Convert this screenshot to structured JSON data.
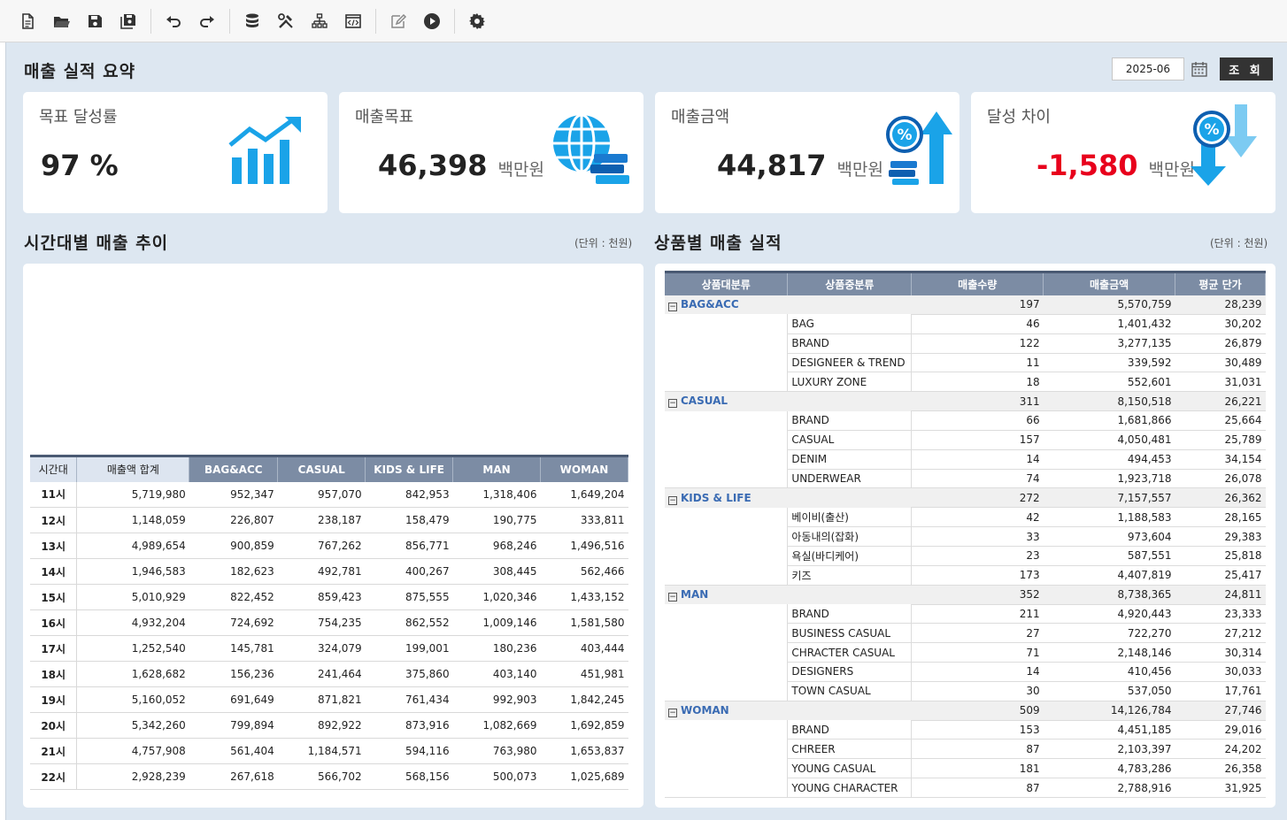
{
  "toolbar": {
    "items": [
      "new-file-icon",
      "open-folder-icon",
      "save-icon",
      "save-as-icon",
      "undo-icon",
      "redo-icon",
      "database-icon",
      "tools-icon",
      "hierarchy-icon",
      "code-window-icon",
      "edit-icon",
      "play-icon",
      "gear-icon"
    ]
  },
  "header": {
    "title": "매출 실적 요약",
    "date_value": "2025-06",
    "search_label": "조 회"
  },
  "kpis": {
    "rate": {
      "label": "목표 달성률",
      "value": "97 %"
    },
    "target": {
      "label": "매출목표",
      "value": "46,398",
      "unit": "백만원"
    },
    "sales": {
      "label": "매출금액",
      "value": "44,817",
      "unit": "백만원"
    },
    "gap": {
      "label": "달성 차이",
      "value": "-1,580",
      "unit": "백만원",
      "value_color": "#e8001c"
    }
  },
  "time_section": {
    "title": "시간대별 매출 추이",
    "unit_note": "(단위 : 천원)",
    "headers": [
      "시간대",
      "매출액 합계",
      "BAG&ACC",
      "CASUAL",
      "KIDS & LIFE",
      "MAN",
      "WOMAN"
    ],
    "rows": [
      [
        "11시",
        "5,719,980",
        "952,347",
        "957,070",
        "842,953",
        "1,318,406",
        "1,649,204"
      ],
      [
        "12시",
        "1,148,059",
        "226,807",
        "238,187",
        "158,479",
        "190,775",
        "333,811"
      ],
      [
        "13시",
        "4,989,654",
        "900,859",
        "767,262",
        "856,771",
        "968,246",
        "1,496,516"
      ],
      [
        "14시",
        "1,946,583",
        "182,623",
        "492,781",
        "400,267",
        "308,445",
        "562,466"
      ],
      [
        "15시",
        "5,010,929",
        "822,452",
        "859,423",
        "875,555",
        "1,020,346",
        "1,433,152"
      ],
      [
        "16시",
        "4,932,204",
        "724,692",
        "754,235",
        "862,552",
        "1,009,146",
        "1,581,580"
      ],
      [
        "17시",
        "1,252,540",
        "145,781",
        "324,079",
        "199,001",
        "180,236",
        "403,444"
      ],
      [
        "18시",
        "1,628,682",
        "156,236",
        "241,464",
        "375,860",
        "403,140",
        "451,981"
      ],
      [
        "19시",
        "5,160,052",
        "691,649",
        "871,821",
        "761,434",
        "992,903",
        "1,842,245"
      ],
      [
        "20시",
        "5,342,260",
        "799,894",
        "892,922",
        "873,916",
        "1,082,669",
        "1,692,859"
      ],
      [
        "21시",
        "4,757,908",
        "561,404",
        "1,184,571",
        "594,116",
        "763,980",
        "1,653,837"
      ],
      [
        "22시",
        "2,928,239",
        "267,618",
        "566,702",
        "568,156",
        "500,073",
        "1,025,689"
      ]
    ]
  },
  "product_section": {
    "title": "상품별 매출 실적",
    "unit_note": "(단위 : 천원)",
    "headers": [
      "상품대분류",
      "상품중분류",
      "매출수량",
      "매출금액",
      "평균 단가"
    ],
    "groups": [
      {
        "name": "BAG&ACC",
        "qty": "197",
        "amount": "5,570,759",
        "avg": "28,239",
        "items": [
          [
            "BAG",
            "46",
            "1,401,432",
            "30,202"
          ],
          [
            "BRAND",
            "122",
            "3,277,135",
            "26,879"
          ],
          [
            "DESIGNEER & TREND",
            "11",
            "339,592",
            "30,489"
          ],
          [
            "LUXURY ZONE",
            "18",
            "552,601",
            "31,031"
          ]
        ]
      },
      {
        "name": "CASUAL",
        "qty": "311",
        "amount": "8,150,518",
        "avg": "26,221",
        "items": [
          [
            "BRAND",
            "66",
            "1,681,866",
            "25,664"
          ],
          [
            "CASUAL",
            "157",
            "4,050,481",
            "25,789"
          ],
          [
            "DENIM",
            "14",
            "494,453",
            "34,154"
          ],
          [
            "UNDERWEAR",
            "74",
            "1,923,718",
            "26,078"
          ]
        ]
      },
      {
        "name": "KIDS & LIFE",
        "qty": "272",
        "amount": "7,157,557",
        "avg": "26,362",
        "items": [
          [
            "베이비(출산)",
            "42",
            "1,188,583",
            "28,165"
          ],
          [
            "아동내의(잡화)",
            "33",
            "973,604",
            "29,383"
          ],
          [
            "욕실(바디케어)",
            "23",
            "587,551",
            "25,818"
          ],
          [
            "키즈",
            "173",
            "4,407,819",
            "25,417"
          ]
        ]
      },
      {
        "name": "MAN",
        "qty": "352",
        "amount": "8,738,365",
        "avg": "24,811",
        "items": [
          [
            "BRAND",
            "211",
            "4,920,443",
            "23,333"
          ],
          [
            "BUSINESS CASUAL",
            "27",
            "722,270",
            "27,212"
          ],
          [
            "CHRACTER CASUAL",
            "71",
            "2,148,146",
            "30,314"
          ],
          [
            "DESIGNERS",
            "14",
            "410,456",
            "30,033"
          ],
          [
            "TOWN CASUAL",
            "30",
            "537,050",
            "17,761"
          ]
        ]
      },
      {
        "name": "WOMAN",
        "qty": "509",
        "amount": "14,126,784",
        "avg": "27,746",
        "items": [
          [
            "BRAND",
            "153",
            "4,451,185",
            "29,016"
          ],
          [
            "CHREER",
            "87",
            "2,103,397",
            "24,202"
          ],
          [
            "YOUNG CASUAL",
            "181",
            "4,783,286",
            "26,358"
          ],
          [
            "YOUNG CHARACTER",
            "87",
            "2,788,916",
            "31,925"
          ]
        ]
      }
    ]
  }
}
